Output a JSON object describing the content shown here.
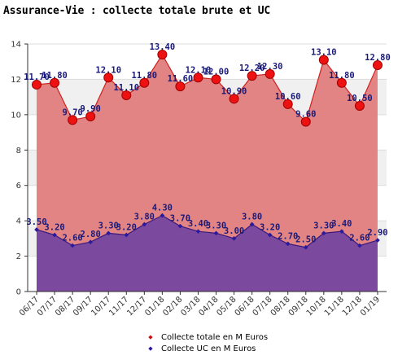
{
  "title": "Assurance-Vie : collecte totale brute et UC",
  "chart_data": {
    "type": "area",
    "categories": [
      "06/17",
      "07/17",
      "08/17",
      "09/17",
      "10/17",
      "11/17",
      "12/17",
      "01/18",
      "02/18",
      "03/18",
      "04/18",
      "05/18",
      "06/18",
      "07/18",
      "08/18",
      "09/18",
      "10/18",
      "11/18",
      "12/18",
      "01/19"
    ],
    "series": [
      {
        "name": "Collecte totale en M Euros",
        "values": [
          11.7,
          11.8,
          9.7,
          9.9,
          12.1,
          11.1,
          11.8,
          13.4,
          11.6,
          12.1,
          12.0,
          10.9,
          12.2,
          12.3,
          10.6,
          9.6,
          13.1,
          11.8,
          10.5,
          12.8
        ],
        "labels": [
          "11.70",
          "11.80",
          "9.70",
          "9.90",
          "12.10",
          "11.10",
          "11.80",
          "13.40",
          "11.60",
          "12.10",
          "12.00",
          "10.90",
          "12.20",
          "12.30",
          "10.60",
          "9.60",
          "13.10",
          "11.80",
          "10.50",
          "12.80"
        ],
        "fill": "#e07d7d",
        "line": "#d02020",
        "marker": "#ee1111",
        "legend_symbol": "◆"
      },
      {
        "name": "Collecte UC en M Euros",
        "values": [
          3.5,
          3.2,
          2.6,
          2.8,
          3.3,
          3.2,
          3.8,
          4.3,
          3.7,
          3.4,
          3.3,
          3.0,
          3.8,
          3.2,
          2.7,
          2.5,
          3.3,
          3.4,
          2.6,
          2.9
        ],
        "labels": [
          "3.50",
          "3.20",
          "2.60",
          "2.80",
          "3.30",
          "3.20",
          "3.80",
          "4.30",
          "3.70",
          "3.40",
          "3.30",
          "3.00",
          "3.80",
          "3.20",
          "2.70",
          "2.50",
          "3.30",
          "3.40",
          "2.60",
          "2.90"
        ],
        "fill": "#7b4a9e",
        "line": "#3a1a7a",
        "marker": "#2a1aa0",
        "legend_symbol": "◆"
      }
    ],
    "yticks": [
      "0",
      "2",
      "4",
      "6",
      "8",
      "10",
      "12",
      "14"
    ],
    "ylim": [
      0,
      14
    ],
    "grid": "horizontal bands",
    "legend_position": "bottom"
  }
}
